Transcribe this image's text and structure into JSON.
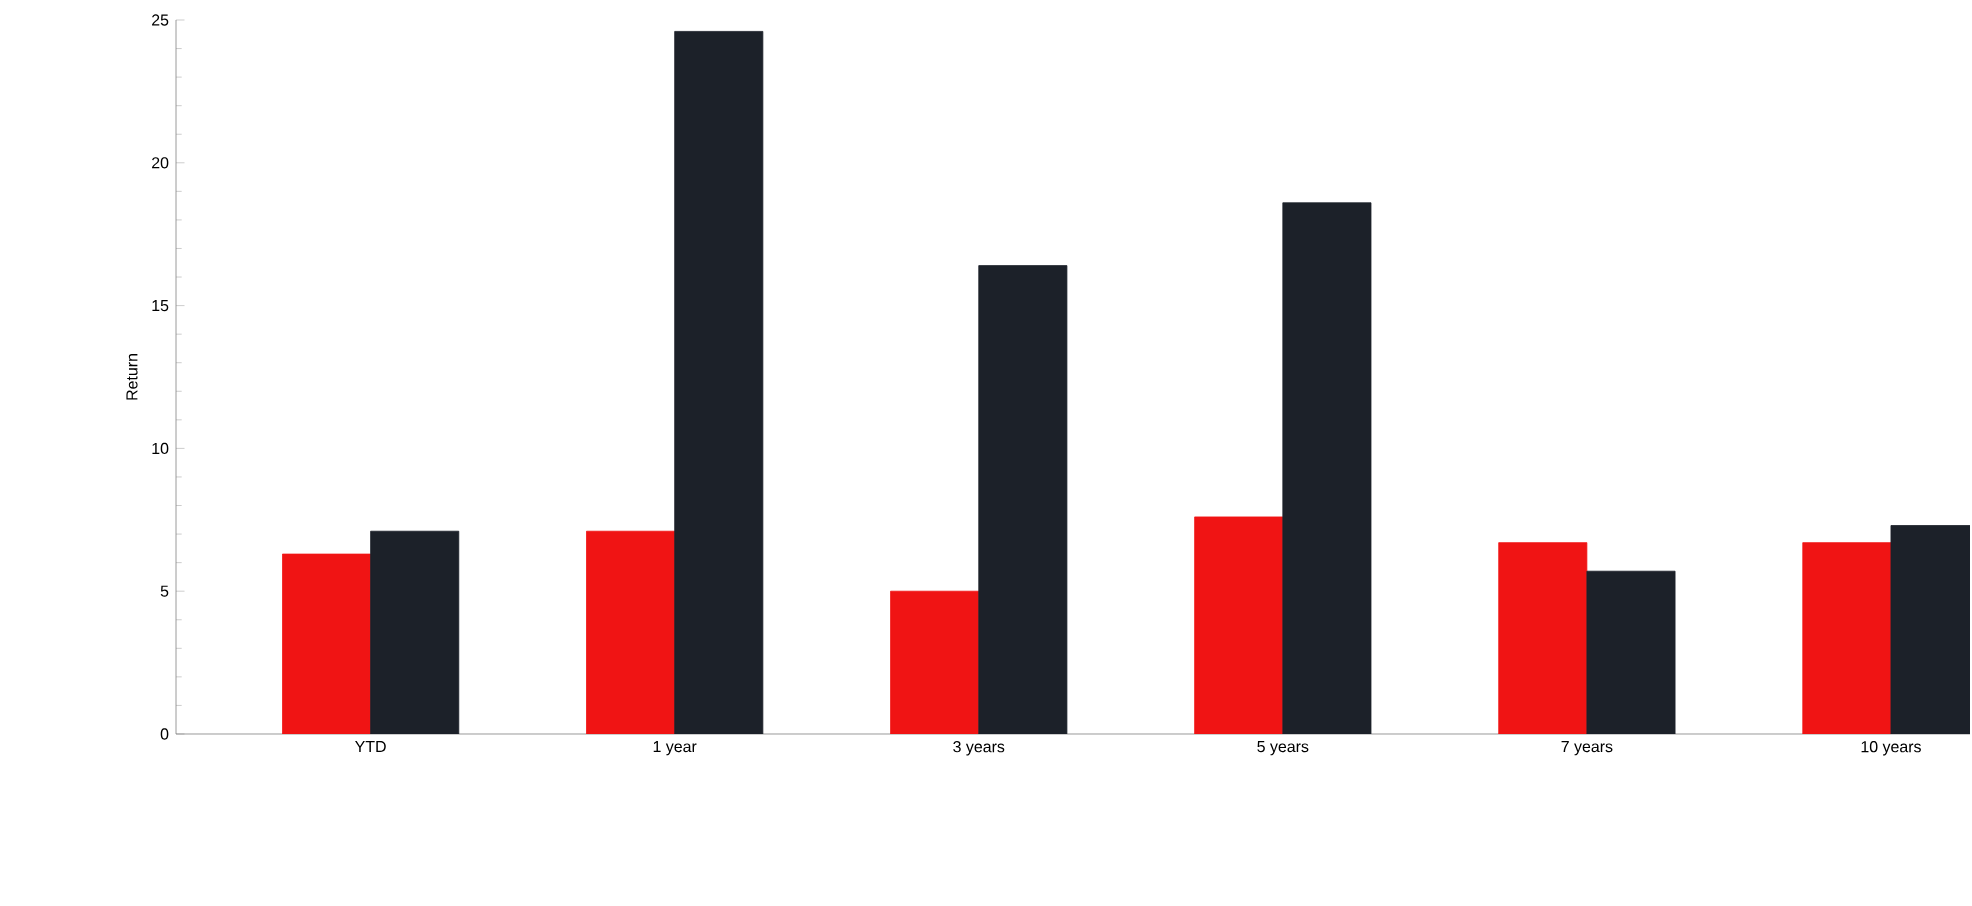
{
  "chart_data": {
    "type": "bar",
    "ylabel": "Return",
    "categories": [
      "YTD",
      "1 year",
      "3 years",
      "5 years",
      "7 years",
      "10 years"
    ],
    "series": [
      {
        "color": "#f01414",
        "values": [
          6.3,
          7.1,
          5.0,
          7.6,
          6.7,
          6.7
        ]
      },
      {
        "color": "#1c2129",
        "values": [
          7.1,
          24.6,
          16.4,
          18.6,
          5.7,
          7.3
        ]
      }
    ],
    "ylim": [
      0,
      25
    ],
    "yticks": [
      0,
      5,
      10,
      15,
      20,
      25
    ]
  }
}
